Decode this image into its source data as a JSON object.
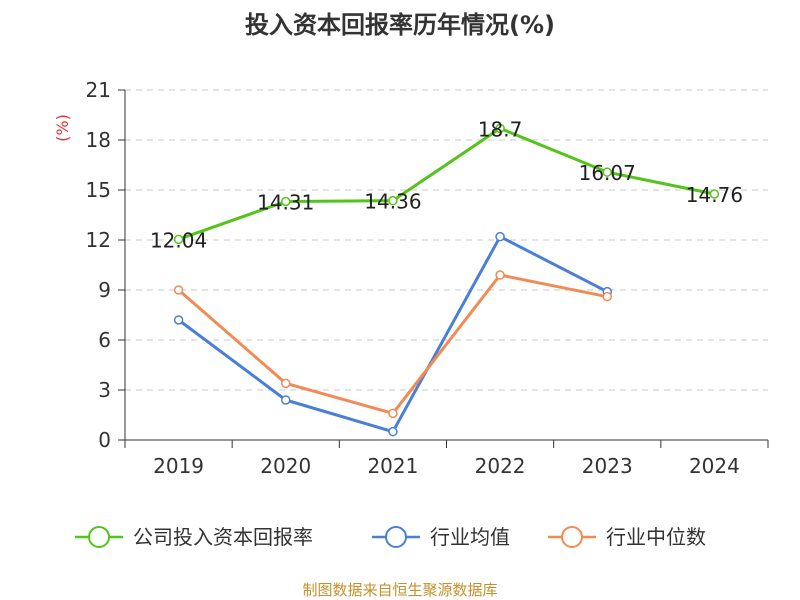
{
  "chart_data": {
    "type": "line",
    "title": "投入资本回报率历年情况(%)",
    "ylabel": "(%)",
    "xlabel": "",
    "categories": [
      "2019",
      "2020",
      "2021",
      "2022",
      "2023",
      "2024"
    ],
    "ylim": [
      0,
      21
    ],
    "yticks": [
      0,
      3,
      6,
      9,
      12,
      15,
      18,
      21
    ],
    "grid": true,
    "legend_position": "bottom",
    "series": [
      {
        "name": "公司投入资本回报率",
        "color": "#52c41a",
        "values": [
          12.04,
          14.31,
          14.36,
          18.7,
          16.07,
          14.76
        ],
        "labels": [
          "12.04",
          "14.31",
          "14.36",
          "18.7",
          "16.07",
          "14.76"
        ]
      },
      {
        "name": "行业均值",
        "color": "#4a7fd6",
        "values": [
          7.2,
          2.4,
          0.5,
          12.2,
          8.9,
          null
        ]
      },
      {
        "name": "行业中位数",
        "color": "#f28a55",
        "values": [
          9.0,
          3.4,
          1.6,
          9.9,
          8.6,
          null
        ]
      }
    ],
    "source": "制图数据来自恒生聚源数据库"
  }
}
